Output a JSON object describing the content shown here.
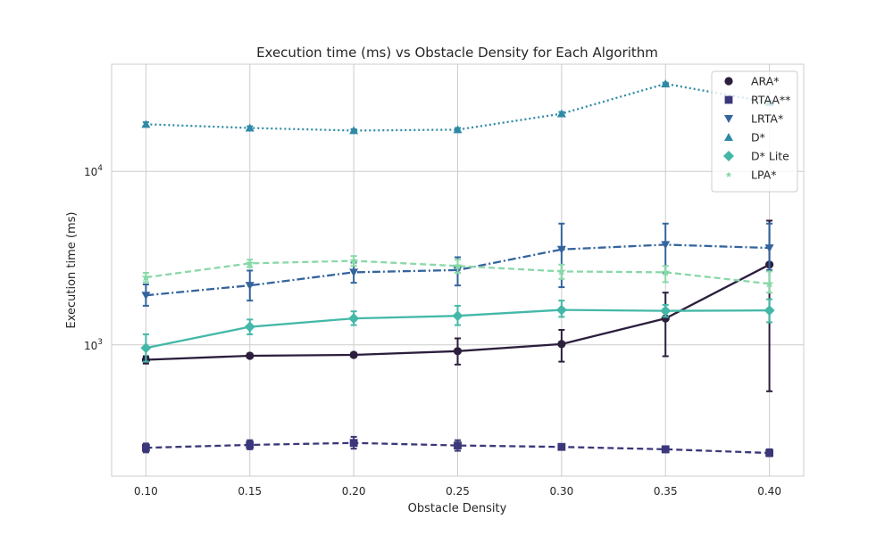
{
  "chart_data": {
    "type": "line",
    "title": "Execution time (ms) vs Obstacle Density for Each Algorithm",
    "xlabel": "Obstacle Density",
    "ylabel": "Execution time (ms)",
    "x": [
      0.1,
      0.15,
      0.2,
      0.25,
      0.3,
      0.35,
      0.4
    ],
    "x_tick_labels": [
      "0.10",
      "0.15",
      "0.20",
      "0.25",
      "0.30",
      "0.35",
      "0.40"
    ],
    "xlim": [
      0.0835,
      0.4165
    ],
    "y_scale": "log",
    "ylim": [
      175,
      41500
    ],
    "y_ticks": [
      {
        "value": 1000,
        "base": "10",
        "exp": "3"
      },
      {
        "value": 10000,
        "base": "10",
        "exp": "4"
      }
    ],
    "grid": true,
    "legend_position": "top-right",
    "series": [
      {
        "name": "ARA*",
        "color": "#2c1e3d",
        "dash": "solid",
        "marker": "circle",
        "values": [
          820,
          865,
          875,
          920,
          1010,
          1420,
          2900
        ],
        "err_low": [
          780,
          840,
          850,
          770,
          800,
          860,
          540
        ],
        "err_high": [
          860,
          890,
          900,
          1090,
          1220,
          2000,
          5200
        ]
      },
      {
        "name": "RTAA**",
        "color": "#3b377a",
        "dash": "dashed",
        "marker": "square",
        "values": [
          255,
          265,
          272,
          263,
          258,
          250,
          238
        ],
        "err_low": [
          240,
          250,
          252,
          245,
          250,
          240,
          228
        ],
        "err_high": [
          270,
          282,
          295,
          282,
          268,
          260,
          250
        ]
      },
      {
        "name": "LRTA*",
        "color": "#34649d",
        "dash": "dashdot",
        "marker": "triangle-down",
        "values": [
          1930,
          2200,
          2620,
          2700,
          3550,
          3780,
          3620
        ],
        "err_low": [
          1680,
          1800,
          2280,
          2200,
          2150,
          2600,
          2700
        ],
        "err_high": [
          2230,
          2680,
          2980,
          3200,
          5000,
          5000,
          5000
        ]
      },
      {
        "name": "D*",
        "color": "#2d8aa6",
        "dash": "dotted",
        "marker": "triangle-up",
        "values": [
          18700,
          17800,
          17200,
          17400,
          21500,
          32000,
          25000
        ],
        "err_low": [
          18200,
          17400,
          16900,
          17100,
          21100,
          31500,
          24500
        ],
        "err_high": [
          19200,
          18200,
          17500,
          17800,
          22000,
          32500,
          25500
        ]
      },
      {
        "name": "D* Lite",
        "color": "#44b8a8",
        "dash": "solid",
        "marker": "diamond",
        "values": [
          960,
          1270,
          1420,
          1470,
          1590,
          1570,
          1580
        ],
        "err_low": [
          800,
          1150,
          1300,
          1300,
          1450,
          1450,
          1350
        ],
        "err_high": [
          1150,
          1400,
          1560,
          1680,
          1800,
          1700,
          1830
        ]
      },
      {
        "name": "LPA*",
        "color": "#88d8a8",
        "dash": "dashed",
        "marker": "star",
        "values": [
          2450,
          2950,
          3050,
          2850,
          2650,
          2620,
          2250
        ],
        "err_low": [
          2300,
          2800,
          2850,
          2600,
          2400,
          2300,
          2000
        ],
        "err_high": [
          2600,
          3100,
          3250,
          3100,
          2900,
          2850,
          2650
        ]
      }
    ]
  }
}
